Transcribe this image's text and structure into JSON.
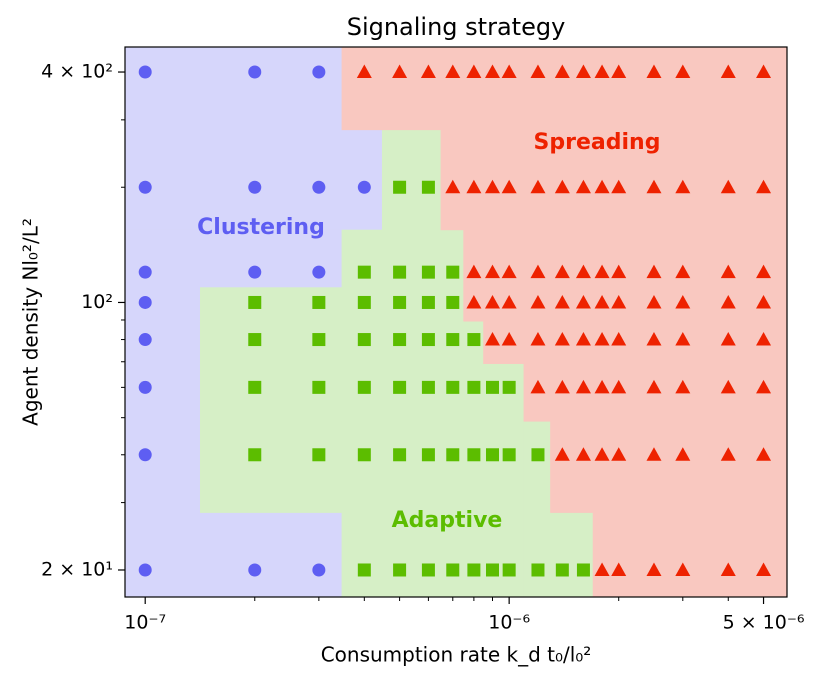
{
  "chart_data": {
    "type": "scatter",
    "title": "Signaling strategy",
    "xlabel": "Consumption rate k_d t₀/l₀²",
    "ylabel": "Agent density Nl₀²/L²",
    "xscale": "log",
    "yscale": "log",
    "xlim": [
      8.8e-08,
      5.8e-06
    ],
    "ylim": [
      17,
      465
    ],
    "xticks": [
      {
        "value": 1e-07,
        "label": "10⁻⁷"
      },
      {
        "value": 1e-06,
        "label": "10⁻⁶"
      },
      {
        "value": 5e-06,
        "label": "5 × 10⁻⁶"
      }
    ],
    "xticks_minor": [
      2e-07,
      3e-07,
      4e-07,
      5e-07,
      6e-07,
      7e-07,
      8e-07,
      9e-07,
      2e-06,
      3e-06,
      4e-06
    ],
    "yticks": [
      {
        "value": 20,
        "label": "2 × 10¹"
      },
      {
        "value": 100,
        "label": "10²"
      },
      {
        "value": 400,
        "label": "4 × 10²"
      }
    ],
    "yticks_minor": [
      30,
      40,
      50,
      60,
      70,
      80,
      90,
      200,
      300
    ],
    "series": [
      {
        "name": "Clustering",
        "color": "#5e5ef2",
        "region_color": "#d6d6fb",
        "marker": "circle",
        "x": [
          1e-07,
          2e-07,
          3e-07,
          1e-07,
          2e-07,
          3e-07,
          4e-07,
          1e-07,
          2e-07,
          3e-07,
          1e-07,
          1e-07,
          1e-07,
          1e-07,
          1e-07,
          2e-07,
          3e-07
        ],
        "values": [
          400,
          400,
          400,
          200,
          200,
          200,
          200,
          120,
          120,
          120,
          100,
          80,
          60,
          40,
          20,
          20,
          20
        ]
      },
      {
        "name": "Adaptive",
        "color": "#5cbd00",
        "region_color": "#d6efc6",
        "marker": "square",
        "x": [
          5e-07,
          6e-07,
          4e-07,
          5e-07,
          6e-07,
          7e-07,
          2e-07,
          3e-07,
          4e-07,
          5e-07,
          6e-07,
          7e-07,
          2e-07,
          3e-07,
          4e-07,
          5e-07,
          6e-07,
          7e-07,
          8e-07,
          2e-07,
          3e-07,
          4e-07,
          5e-07,
          6e-07,
          7e-07,
          8e-07,
          9e-07,
          1e-06,
          2e-07,
          3e-07,
          4e-07,
          5e-07,
          6e-07,
          7e-07,
          8e-07,
          9e-07,
          1e-06,
          1.2e-06,
          4e-07,
          5e-07,
          6e-07,
          7e-07,
          8e-07,
          9e-07,
          1e-06,
          1.2e-06,
          1.4e-06,
          1.6e-06
        ],
        "values": [
          200,
          200,
          120,
          120,
          120,
          120,
          100,
          100,
          100,
          100,
          100,
          100,
          80,
          80,
          80,
          80,
          80,
          80,
          80,
          60,
          60,
          60,
          60,
          60,
          60,
          60,
          60,
          60,
          40,
          40,
          40,
          40,
          40,
          40,
          40,
          40,
          40,
          40,
          20,
          20,
          20,
          20,
          20,
          20,
          20,
          20,
          20,
          20
        ]
      },
      {
        "name": "Spreading",
        "color": "#ee2200",
        "region_color": "#f9c8c0",
        "marker": "triangle",
        "x": [
          4e-07,
          5e-07,
          6e-07,
          7e-07,
          8e-07,
          9e-07,
          1e-06,
          1.2e-06,
          1.4e-06,
          1.6e-06,
          1.8e-06,
          2e-06,
          2.5e-06,
          3e-06,
          4e-06,
          5e-06,
          7e-07,
          8e-07,
          9e-07,
          1e-06,
          1.2e-06,
          1.4e-06,
          1.6e-06,
          1.8e-06,
          2e-06,
          2.5e-06,
          3e-06,
          4e-06,
          5e-06,
          8e-07,
          9e-07,
          1e-06,
          1.2e-06,
          1.4e-06,
          1.6e-06,
          1.8e-06,
          2e-06,
          2.5e-06,
          3e-06,
          4e-06,
          5e-06,
          8e-07,
          9e-07,
          1e-06,
          1.2e-06,
          1.4e-06,
          1.6e-06,
          1.8e-06,
          2e-06,
          2.5e-06,
          3e-06,
          4e-06,
          5e-06,
          9e-07,
          1e-06,
          1.2e-06,
          1.4e-06,
          1.6e-06,
          1.8e-06,
          2e-06,
          2.5e-06,
          3e-06,
          4e-06,
          5e-06,
          1.2e-06,
          1.4e-06,
          1.6e-06,
          1.8e-06,
          2e-06,
          2.5e-06,
          3e-06,
          4e-06,
          5e-06,
          1.4e-06,
          1.6e-06,
          1.8e-06,
          2e-06,
          2.5e-06,
          3e-06,
          4e-06,
          5e-06,
          1.8e-06,
          2e-06,
          2.5e-06,
          3e-06,
          4e-06,
          5e-06
        ],
        "values": [
          400,
          400,
          400,
          400,
          400,
          400,
          400,
          400,
          400,
          400,
          400,
          400,
          400,
          400,
          400,
          400,
          200,
          200,
          200,
          200,
          200,
          200,
          200,
          200,
          200,
          200,
          200,
          200,
          200,
          120,
          120,
          120,
          120,
          120,
          120,
          120,
          120,
          120,
          120,
          120,
          120,
          100,
          100,
          100,
          100,
          100,
          100,
          100,
          100,
          100,
          100,
          100,
          100,
          80,
          80,
          80,
          80,
          80,
          80,
          80,
          80,
          80,
          80,
          80,
          60,
          60,
          60,
          60,
          60,
          60,
          60,
          60,
          60,
          40,
          40,
          40,
          40,
          40,
          40,
          40,
          40,
          20,
          20,
          20,
          20,
          20,
          20
        ]
      }
    ]
  }
}
